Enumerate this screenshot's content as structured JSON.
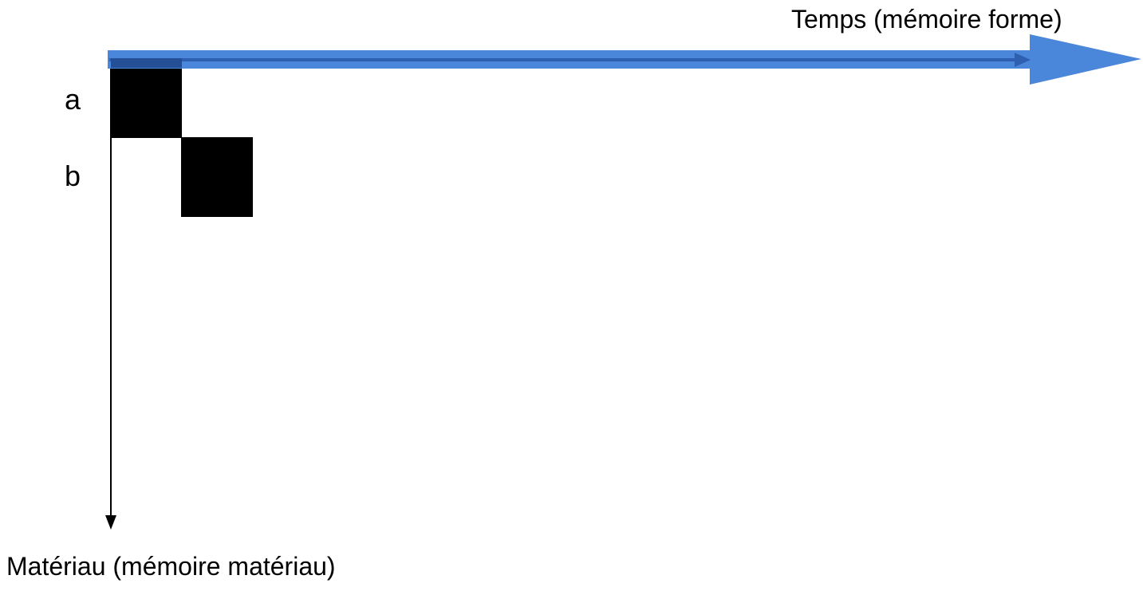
{
  "axes": {
    "time_label": "Temps (mémoire forme)",
    "material_label": "Matériau (mémoire matériau)"
  },
  "rows": [
    {
      "label": "a"
    },
    {
      "label": "b"
    }
  ],
  "colors": {
    "time_arrow_fill": "#4a86d9",
    "time_arrow_line": "#2f5fb0",
    "cell_fill": "#000000",
    "axis_line": "#000000"
  }
}
